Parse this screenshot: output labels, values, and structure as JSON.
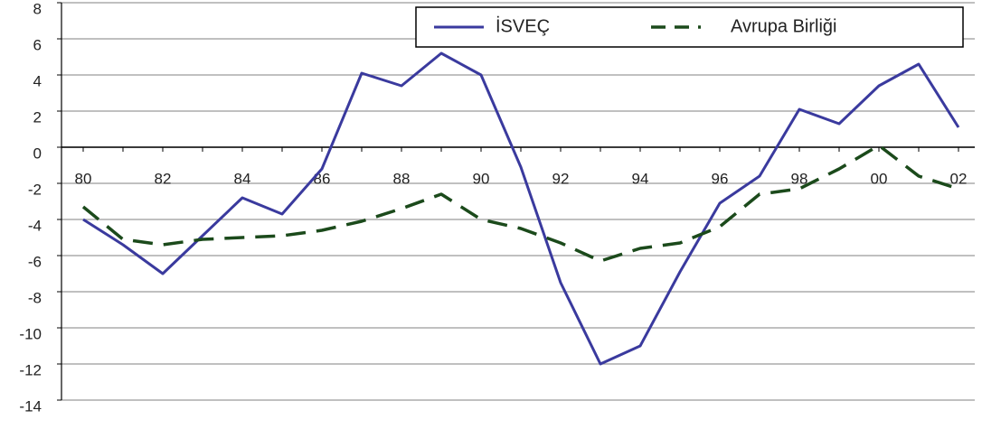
{
  "chart_data": {
    "type": "line",
    "categories": [
      "80",
      null,
      "82",
      null,
      "84",
      null,
      "86",
      null,
      "88",
      null,
      "90",
      null,
      "92",
      null,
      "94",
      null,
      "96",
      null,
      "98",
      null,
      "00",
      null,
      "02"
    ],
    "series": [
      {
        "name": "İSVEÇ",
        "color": "#3a3a9e",
        "dash": false,
        "values": [
          -4,
          -5.4,
          -7,
          -4.9,
          -2.8,
          -3.7,
          -1.2,
          4.1,
          3.4,
          5.2,
          4,
          -1.1,
          -7.5,
          -12,
          -11,
          -6.9,
          -3.1,
          -1.6,
          2.1,
          1.3,
          3.4,
          4.6,
          1.1
        ]
      },
      {
        "name": "Avrupa Birliği",
        "color": "#1b4a1b",
        "dash": true,
        "values": [
          -3.3,
          -5.1,
          -5.4,
          -5.1,
          -5,
          -4.9,
          -4.6,
          -4.1,
          -3.4,
          -2.6,
          -4,
          -4.5,
          -5.3,
          -6.3,
          -5.6,
          -5.3,
          -4.4,
          -2.6,
          -2.3,
          -1.2,
          0.1,
          -1.6,
          -2.3
        ]
      }
    ],
    "ylim": [
      -14,
      8
    ],
    "yticks": [
      -14,
      -12,
      -10,
      -8,
      -6,
      -4,
      -2,
      0,
      2,
      4,
      6,
      8
    ],
    "grid": true,
    "legend": "top-right"
  }
}
